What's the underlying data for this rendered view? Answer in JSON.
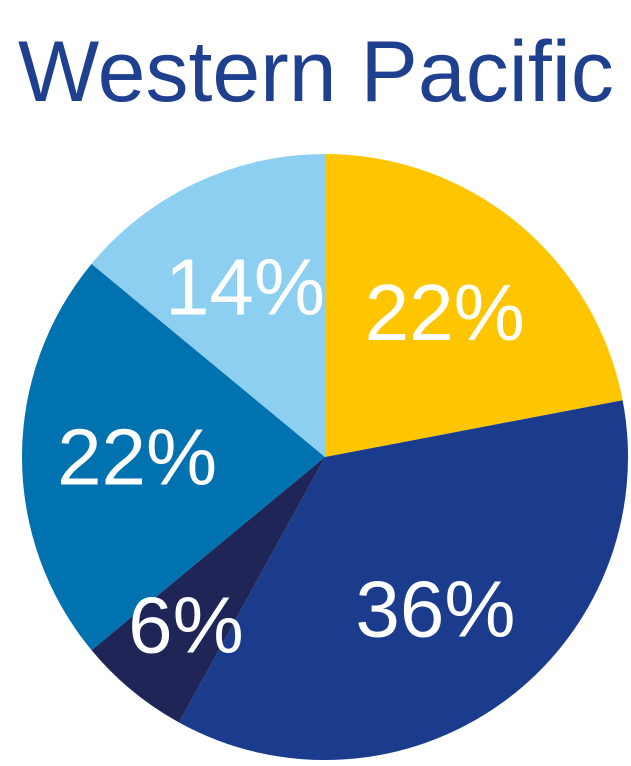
{
  "chart_data": {
    "type": "pie",
    "title": "Western Pacific",
    "values": [
      22,
      36,
      6,
      22,
      14
    ],
    "value_labels": [
      "22%",
      "36%",
      "6%",
      "22%",
      "14%"
    ],
    "colors": [
      "#ffc600",
      "#1b3c8c",
      "#1f2556",
      "#0072b0",
      "#8dcff0"
    ]
  }
}
